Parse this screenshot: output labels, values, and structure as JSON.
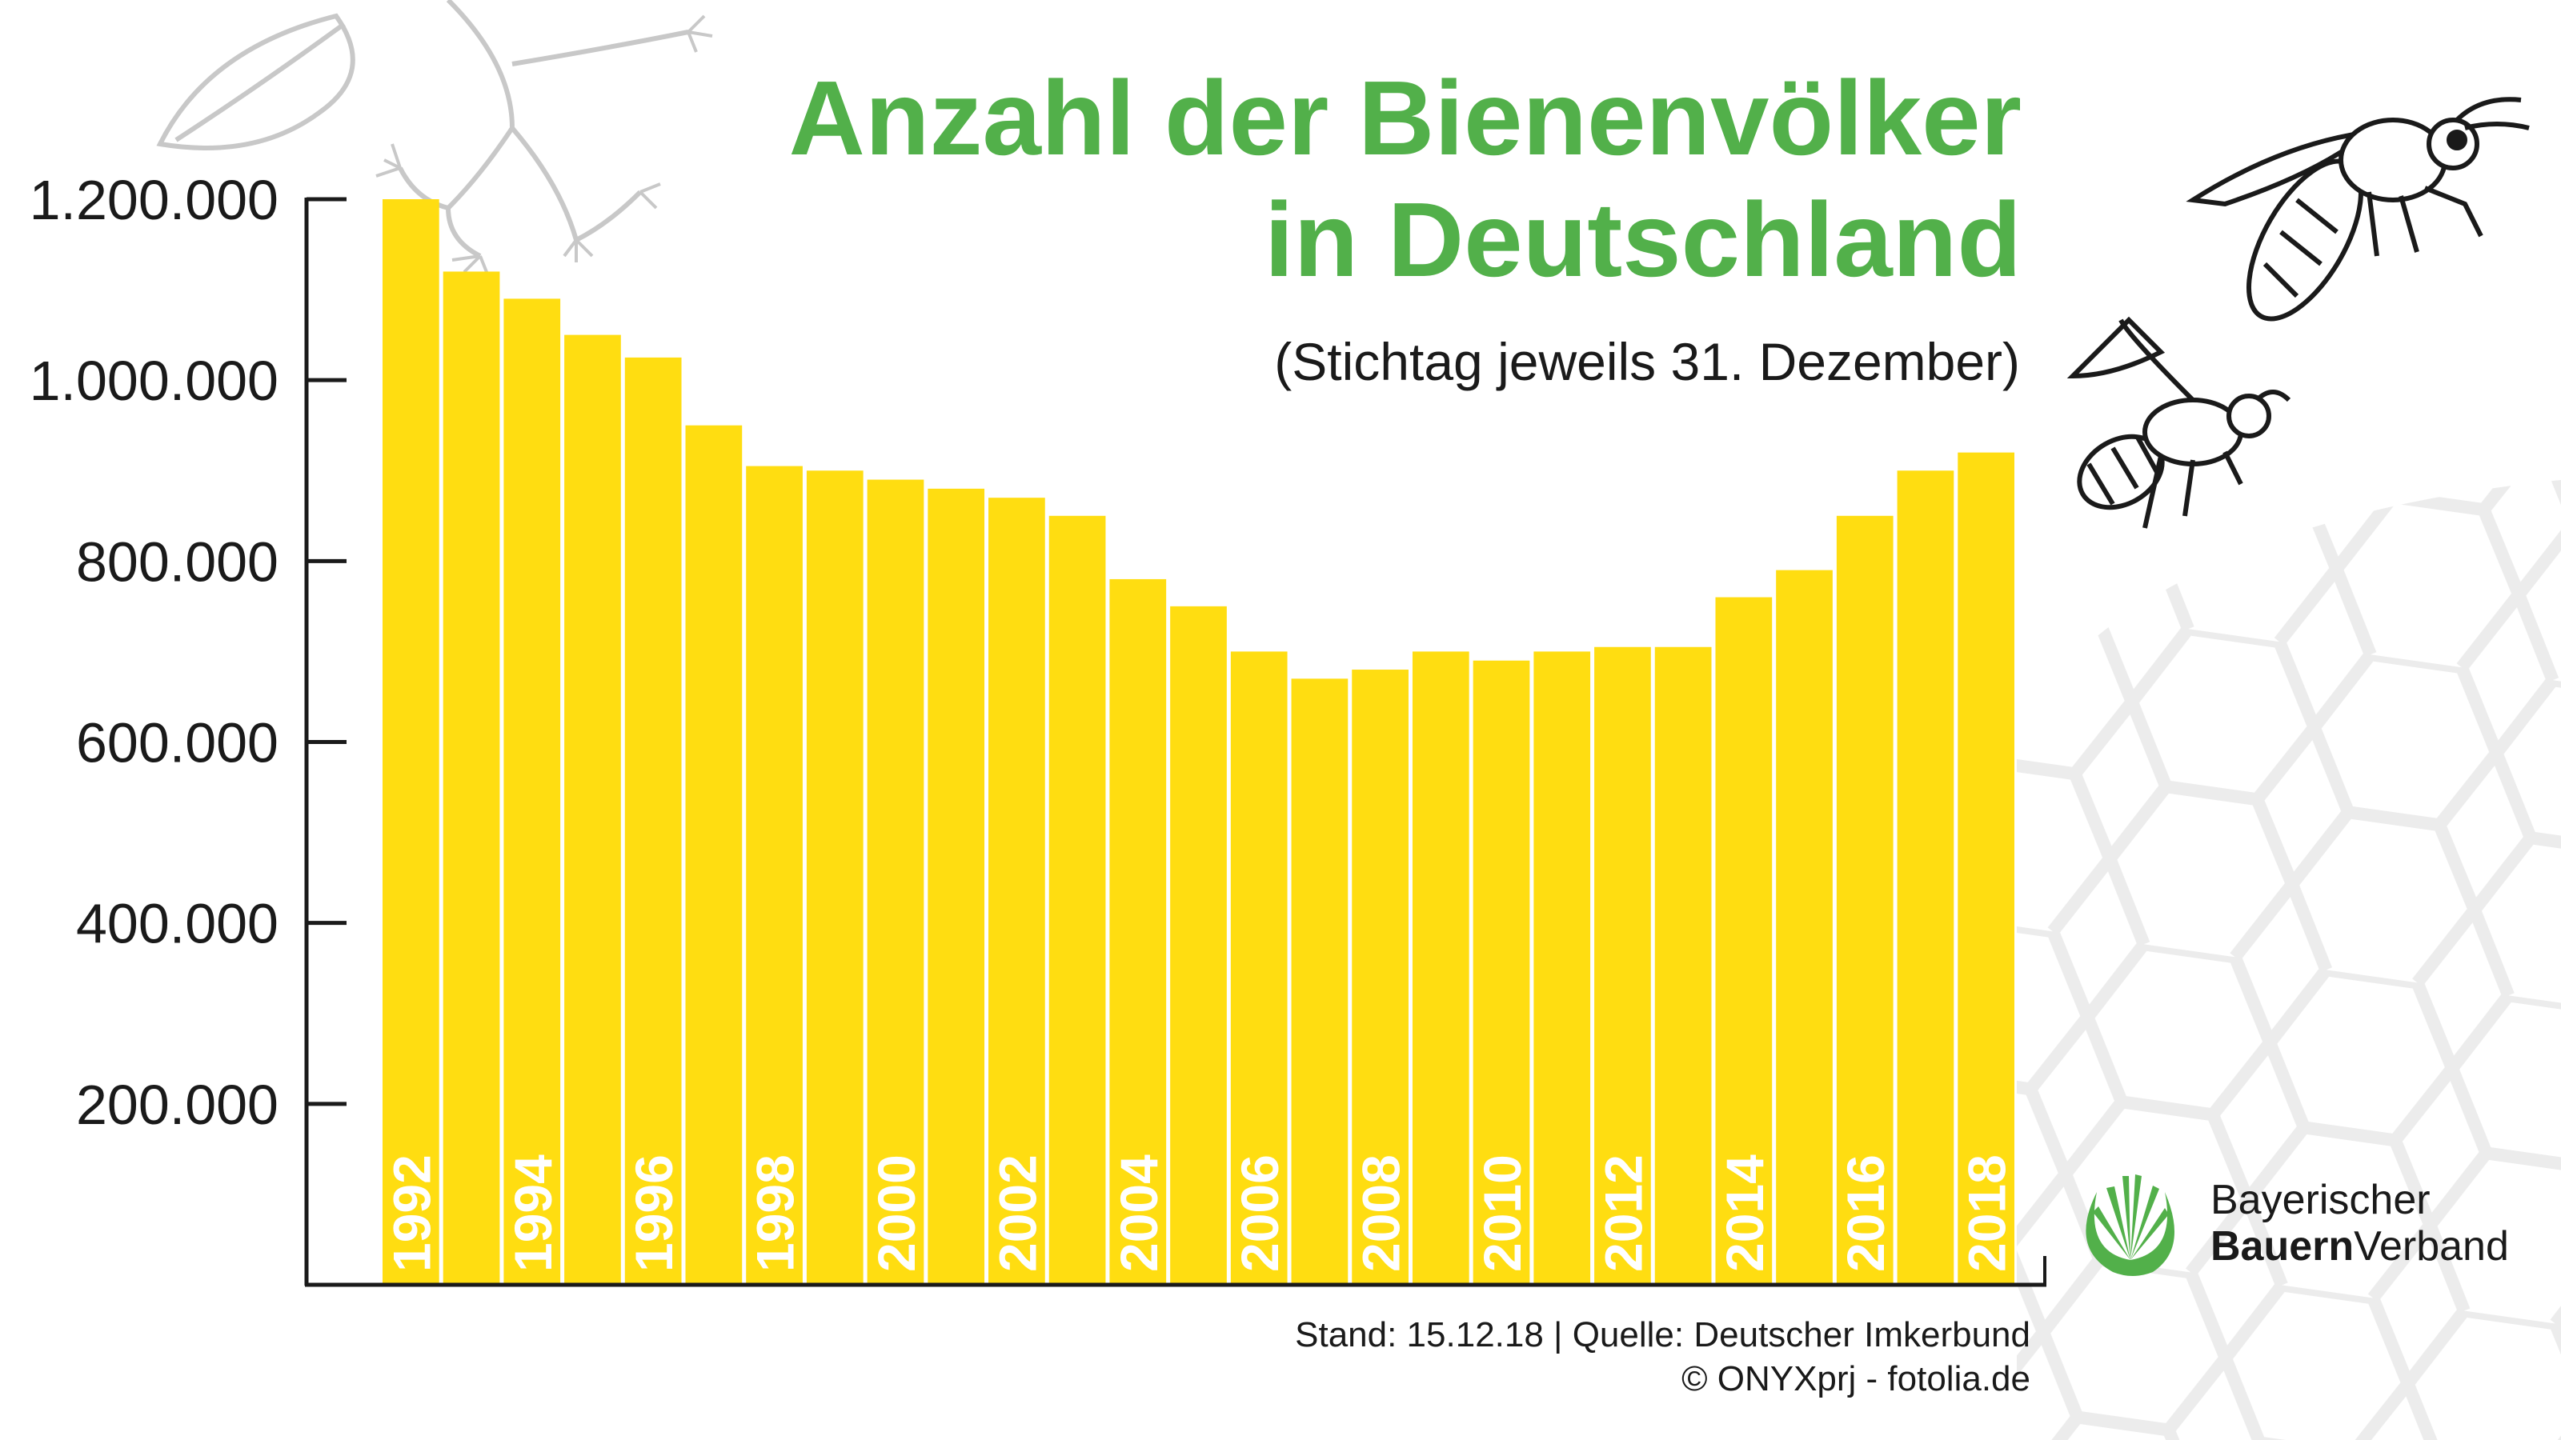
{
  "chart_data": {
    "type": "bar",
    "title": "Anzahl der Bienenvölker in Deutschland",
    "title_lines": [
      "Anzahl der Bienenvölker",
      "in Deutschland"
    ],
    "subtitle": "(Stichtag jeweils 31. Dezember)",
    "xlabel": "",
    "ylabel": "",
    "ylim": [
      0,
      1200000
    ],
    "yticks": [
      200000,
      400000,
      600000,
      800000,
      1000000,
      1200000
    ],
    "ytick_labels": [
      "200.000",
      "400.000",
      "600.000",
      "800.000",
      "1.000.000",
      "1.200.000"
    ],
    "categories": [
      "1992",
      "1993",
      "1994",
      "1995",
      "1996",
      "1997",
      "1998",
      "1999",
      "2000",
      "2001",
      "2002",
      "2003",
      "2004",
      "2005",
      "2006",
      "2007",
      "2008",
      "2009",
      "2010",
      "2011",
      "2012",
      "2013",
      "2014",
      "2015",
      "2016",
      "2017",
      "2018"
    ],
    "shown_category_labels": [
      "1992",
      "1994",
      "1996",
      "1998",
      "2000",
      "2002",
      "2004",
      "2006",
      "2008",
      "2010",
      "2012",
      "2014",
      "2016",
      "2018"
    ],
    "values": [
      1200000,
      1120000,
      1090000,
      1050000,
      1025000,
      950000,
      905000,
      900000,
      890000,
      880000,
      870000,
      850000,
      780000,
      750000,
      700000,
      670000,
      680000,
      700000,
      690000,
      700000,
      705000,
      705000,
      760000,
      790000,
      850000,
      900000,
      920000
    ],
    "grid": false,
    "bar_color": "#ffdd11",
    "title_color": "#52b04a"
  },
  "footer": {
    "source": "Stand: 15.12.18 | Quelle: Deutscher Imkerbund",
    "credit": "© ONYXprj - fotolia.de"
  },
  "logo": {
    "line1": "Bayerischer",
    "line2_bold": "Bauern",
    "line2_regular": "Verband",
    "color": "#52b04a"
  }
}
